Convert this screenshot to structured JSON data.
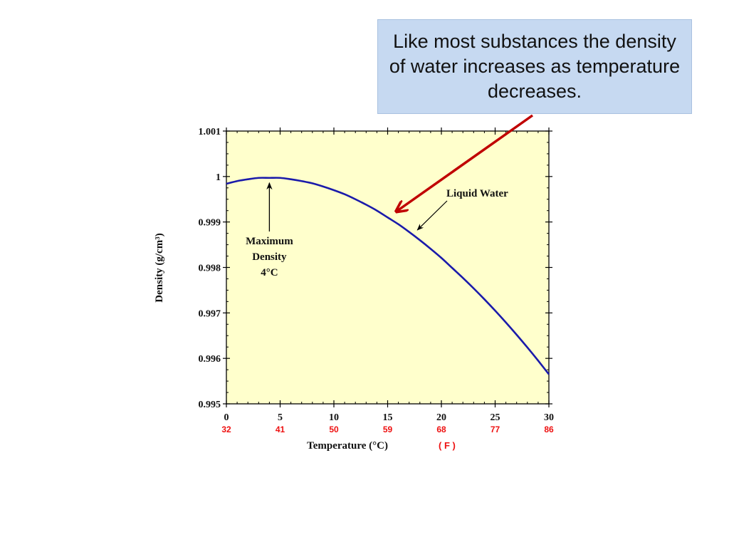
{
  "callout": {
    "text": "Like most substances the density of water increases as temperature decreases."
  },
  "colors": {
    "plot_background": "#ffffcc",
    "curve": "#1a1aaa",
    "pointer_arrow": "#c00000",
    "fahrenheit_labels": "#ee1111",
    "callout_background": "#c6d9f1"
  },
  "chart_data": {
    "type": "line",
    "title": "",
    "xlabel": "Temperature (°C)",
    "xlabel_secondary": "( F )",
    "ylabel": "Density (g/cm³)",
    "xlim": [
      0,
      30
    ],
    "ylim": [
      0.995,
      1.001
    ],
    "grid": false,
    "x_ticks": [
      "0",
      "5",
      "10",
      "15",
      "20",
      "25",
      "30"
    ],
    "x_ticks_fahrenheit": [
      "32",
      "41",
      "50",
      "59",
      "68",
      "77",
      "86"
    ],
    "y_ticks": [
      "0.995",
      "0.996",
      "0.997",
      "0.998",
      "0.999",
      "1",
      "1.001"
    ],
    "series": [
      {
        "name": "Liquid Water",
        "x": [
          0,
          1,
          2,
          3,
          4,
          5,
          6,
          7,
          8,
          9,
          10,
          11,
          12,
          13,
          14,
          15,
          16,
          17,
          18,
          19,
          20,
          21,
          22,
          23,
          24,
          25,
          26,
          27,
          28,
          29,
          30
        ],
        "y": [
          0.99984,
          0.9999,
          0.99994,
          0.99997,
          0.99997,
          0.99997,
          0.99994,
          0.9999,
          0.99985,
          0.99978,
          0.9997,
          0.99961,
          0.9995,
          0.99938,
          0.99925,
          0.9991,
          0.99895,
          0.99878,
          0.9986,
          0.99841,
          0.99821,
          0.99799,
          0.99777,
          0.99754,
          0.9973,
          0.99705,
          0.99679,
          0.99652,
          0.99624,
          0.99595,
          0.99565
        ]
      }
    ],
    "annotations": [
      {
        "id": "max-density",
        "lines": [
          "Maximum",
          "Density",
          "4°C"
        ],
        "points_to_x": 4,
        "points_to_y": 0.99997
      },
      {
        "id": "liquid-water",
        "text": "Liquid Water",
        "points_to_x": 17.5,
        "points_to_y": 0.99876
      }
    ]
  }
}
